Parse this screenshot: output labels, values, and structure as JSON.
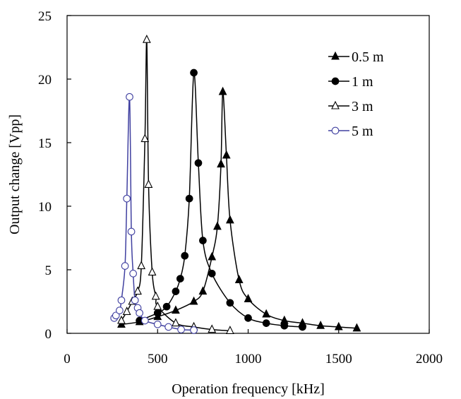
{
  "chart_data": {
    "type": "line",
    "title": "",
    "xlabel": "Operation frequency [kHz]",
    "ylabel": "Output change [Vpp]",
    "xlim": [
      0,
      2000
    ],
    "ylim": [
      0,
      25
    ],
    "xticks": [
      0,
      500,
      1000,
      1500,
      2000
    ],
    "yticks": [
      0,
      5,
      10,
      15,
      20,
      25
    ],
    "grid": false,
    "legend_position": "top-right",
    "series": [
      {
        "name": "0.5 m",
        "marker": "filled-triangle",
        "color": "#000000",
        "x": [
          300,
          400,
          500,
          600,
          700,
          750,
          800,
          830,
          850,
          860,
          880,
          900,
          950,
          1000,
          1100,
          1200,
          1300,
          1400,
          1500,
          1600
        ],
        "y": [
          0.7,
          0.9,
          1.3,
          1.8,
          2.5,
          3.3,
          6.0,
          8.4,
          13.3,
          19.0,
          14.0,
          8.9,
          4.2,
          2.7,
          1.5,
          1.0,
          0.8,
          0.6,
          0.5,
          0.4
        ]
      },
      {
        "name": "1 m",
        "marker": "filled-circle",
        "color": "#000000",
        "x": [
          400,
          500,
          550,
          600,
          625,
          650,
          675,
          700,
          725,
          750,
          800,
          900,
          1000,
          1100,
          1200,
          1300
        ],
        "y": [
          1.0,
          1.6,
          2.1,
          3.3,
          4.3,
          6.1,
          10.6,
          20.5,
          13.4,
          7.3,
          4.7,
          2.4,
          1.2,
          0.8,
          0.6,
          0.5
        ]
      },
      {
        "name": "3 m",
        "marker": "open-triangle",
        "color": "#000000",
        "x": [
          300,
          330,
          360,
          390,
          410,
          430,
          440,
          450,
          470,
          490,
          500,
          600,
          700,
          800,
          900
        ],
        "y": [
          1.0,
          1.7,
          2.5,
          3.3,
          5.3,
          15.3,
          23.1,
          11.7,
          4.8,
          2.9,
          2.1,
          0.8,
          0.5,
          0.3,
          0.2
        ]
      },
      {
        "name": "5 m",
        "marker": "open-circle",
        "color": "#4040a0",
        "x": [
          260,
          270,
          290,
          300,
          320,
          330,
          345,
          355,
          365,
          375,
          390,
          400,
          430,
          500,
          560,
          630,
          700
        ],
        "y": [
          1.2,
          1.4,
          1.8,
          2.6,
          5.3,
          10.6,
          18.6,
          8.0,
          4.7,
          2.6,
          2.0,
          1.6,
          1.0,
          0.7,
          0.5,
          0.3,
          0.25
        ]
      }
    ]
  }
}
